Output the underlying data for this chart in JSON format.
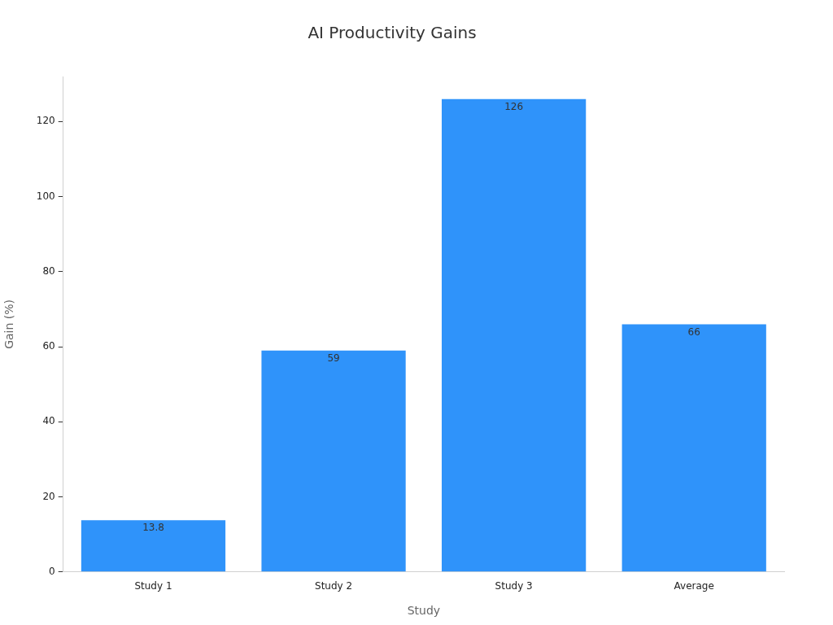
{
  "chart_data": {
    "type": "bar",
    "title": "AI Productivity Gains",
    "xlabel": "Study",
    "ylabel": "Gain (%)",
    "categories": [
      "Study 1",
      "Study 2",
      "Study 3",
      "Average"
    ],
    "values": [
      13.8,
      59,
      126,
      66
    ],
    "color": "#2f93fa",
    "ylim": [
      0,
      132
    ],
    "yticks": [
      0,
      20,
      40,
      60,
      80,
      100,
      120
    ],
    "data_labels": true
  }
}
